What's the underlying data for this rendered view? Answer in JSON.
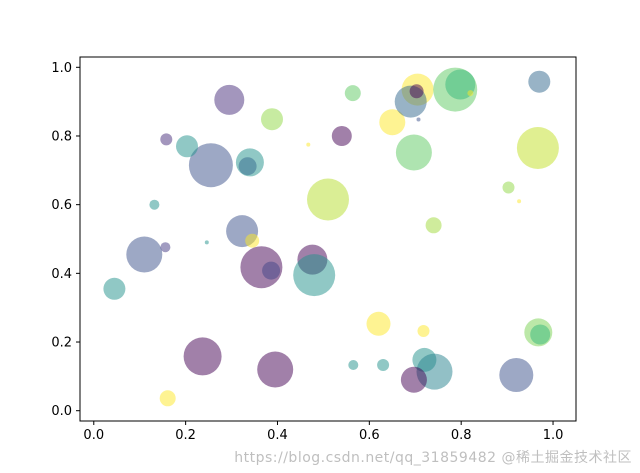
{
  "chart_data": {
    "type": "scatter",
    "title": "",
    "xlabel": "",
    "ylabel": "",
    "xlim": [
      -0.03,
      1.05
    ],
    "ylim": [
      -0.03,
      1.03
    ],
    "xticks": [
      "0.0",
      "0.2",
      "0.4",
      "0.6",
      "0.8",
      "1.0"
    ],
    "yticks": [
      "0.0",
      "0.2",
      "0.4",
      "0.6",
      "0.8",
      "1.0"
    ],
    "grid": false,
    "alpha": 0.5,
    "colormap": "viridis",
    "points": [
      {
        "x": 0.255,
        "y": 0.715,
        "size": 22,
        "color": "#3b528b"
      },
      {
        "x": 0.295,
        "y": 0.905,
        "size": 15,
        "color": "#472d7b"
      },
      {
        "x": 0.158,
        "y": 0.79,
        "size": 6,
        "color": "#472d7b"
      },
      {
        "x": 0.203,
        "y": 0.77,
        "size": 11,
        "color": "#21918c"
      },
      {
        "x": 0.34,
        "y": 0.723,
        "size": 14,
        "color": "#21918c"
      },
      {
        "x": 0.335,
        "y": 0.712,
        "size": 9,
        "color": "#31688e"
      },
      {
        "x": 0.388,
        "y": 0.849,
        "size": 11,
        "color": "#8fd744"
      },
      {
        "x": 0.467,
        "y": 0.775,
        "size": 2,
        "color": "#fde725"
      },
      {
        "x": 0.54,
        "y": 0.8,
        "size": 10,
        "color": "#440154"
      },
      {
        "x": 0.564,
        "y": 0.925,
        "size": 8,
        "color": "#5ec962"
      },
      {
        "x": 0.65,
        "y": 0.84,
        "size": 13,
        "color": "#fde725"
      },
      {
        "x": 0.705,
        "y": 0.935,
        "size": 16,
        "color": "#fde725"
      },
      {
        "x": 0.69,
        "y": 0.9,
        "size": 16,
        "color": "#31688e"
      },
      {
        "x": 0.703,
        "y": 0.93,
        "size": 7,
        "color": "#440154"
      },
      {
        "x": 0.707,
        "y": 0.848,
        "size": 2,
        "color": "#3b528b"
      },
      {
        "x": 0.787,
        "y": 0.935,
        "size": 22,
        "color": "#5ec962"
      },
      {
        "x": 0.798,
        "y": 0.95,
        "size": 15,
        "color": "#35b779"
      },
      {
        "x": 0.82,
        "y": 0.925,
        "size": 3,
        "color": "#fde725"
      },
      {
        "x": 0.97,
        "y": 0.958,
        "size": 11,
        "color": "#31688e"
      },
      {
        "x": 0.697,
        "y": 0.752,
        "size": 18,
        "color": "#5ec962"
      },
      {
        "x": 0.967,
        "y": 0.765,
        "size": 21,
        "color": "#c2df23"
      },
      {
        "x": 0.132,
        "y": 0.6,
        "size": 5,
        "color": "#21918c"
      },
      {
        "x": 0.51,
        "y": 0.615,
        "size": 21,
        "color": "#b5de2b"
      },
      {
        "x": 0.903,
        "y": 0.65,
        "size": 6,
        "color": "#90d743"
      },
      {
        "x": 0.926,
        "y": 0.61,
        "size": 2,
        "color": "#fde725"
      },
      {
        "x": 0.74,
        "y": 0.54,
        "size": 8,
        "color": "#a0da39"
      },
      {
        "x": 0.323,
        "y": 0.523,
        "size": 16,
        "color": "#3b528b"
      },
      {
        "x": 0.345,
        "y": 0.495,
        "size": 7,
        "color": "#fde725"
      },
      {
        "x": 0.11,
        "y": 0.455,
        "size": 18,
        "color": "#3b528b"
      },
      {
        "x": 0.156,
        "y": 0.476,
        "size": 5,
        "color": "#443983"
      },
      {
        "x": 0.246,
        "y": 0.49,
        "size": 2,
        "color": "#21918c"
      },
      {
        "x": 0.365,
        "y": 0.418,
        "size": 21,
        "color": "#440154"
      },
      {
        "x": 0.386,
        "y": 0.408,
        "size": 9,
        "color": "#414487"
      },
      {
        "x": 0.476,
        "y": 0.44,
        "size": 15,
        "color": "#440154"
      },
      {
        "x": 0.48,
        "y": 0.395,
        "size": 21,
        "color": "#21918c"
      },
      {
        "x": 0.045,
        "y": 0.355,
        "size": 11,
        "color": "#21918c"
      },
      {
        "x": 0.62,
        "y": 0.253,
        "size": 12,
        "color": "#fde725"
      },
      {
        "x": 0.718,
        "y": 0.232,
        "size": 6,
        "color": "#fde725"
      },
      {
        "x": 0.968,
        "y": 0.228,
        "size": 14,
        "color": "#7ad151"
      },
      {
        "x": 0.972,
        "y": 0.222,
        "size": 10,
        "color": "#35b779"
      },
      {
        "x": 0.237,
        "y": 0.158,
        "size": 19,
        "color": "#440154"
      },
      {
        "x": 0.395,
        "y": 0.12,
        "size": 18,
        "color": "#440154"
      },
      {
        "x": 0.565,
        "y": 0.133,
        "size": 5,
        "color": "#21918c"
      },
      {
        "x": 0.63,
        "y": 0.133,
        "size": 6,
        "color": "#21918c"
      },
      {
        "x": 0.72,
        "y": 0.148,
        "size": 12,
        "color": "#21918c"
      },
      {
        "x": 0.742,
        "y": 0.114,
        "size": 18,
        "color": "#26828e"
      },
      {
        "x": 0.697,
        "y": 0.09,
        "size": 13,
        "color": "#440154"
      },
      {
        "x": 0.92,
        "y": 0.104,
        "size": 17,
        "color": "#3b528b"
      },
      {
        "x": 0.161,
        "y": 0.036,
        "size": 8,
        "color": "#fde725"
      }
    ]
  },
  "watermark": "https://blog.csdn.net/qq_31859482 @稀土掘金技术社区"
}
